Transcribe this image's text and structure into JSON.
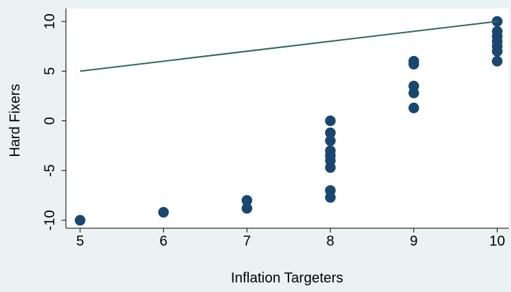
{
  "chart_data": {
    "type": "scatter",
    "x_label": "Inflation Targeters",
    "y_label": "Hard Fixers",
    "xlim": [
      4.83,
      10.14
    ],
    "ylim": [
      -10.8,
      11.3
    ],
    "xticks": [
      5,
      6,
      7,
      8,
      9,
      10
    ],
    "yticks": [
      -10,
      -5,
      0,
      5,
      10
    ],
    "series": [
      {
        "color": "#1a476f",
        "x": [
          5,
          6,
          7,
          7,
          8,
          8,
          8,
          8,
          8,
          8,
          8,
          8,
          8,
          9,
          9,
          9,
          9,
          9,
          10,
          10,
          10,
          10,
          10,
          10,
          10
        ],
        "values": [
          -10,
          -9.2,
          -8,
          -8.8,
          0,
          -1.2,
          -2,
          -3,
          -3.5,
          -4,
          -4.7,
          -7,
          -7.7,
          6,
          5.7,
          3.5,
          2.8,
          1.3,
          10,
          9,
          8.5,
          8,
          7.5,
          7,
          6
        ]
      },
      {
        "color": "#2d6b5c",
        "line": true,
        "x": [
          5,
          10
        ],
        "values": [
          5,
          10
        ]
      }
    ]
  }
}
